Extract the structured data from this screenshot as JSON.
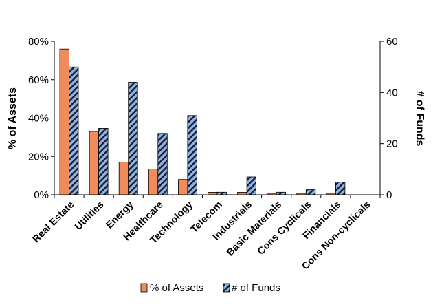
{
  "chart_data": {
    "type": "bar",
    "categories": [
      "Real Estate",
      "Utilities",
      "Energy",
      "Healthcare",
      "Technology",
      "Telecom",
      "Industrials",
      "Basic Materials",
      "Cons Cyclicals",
      "Financials",
      "Cons Non-cyclicals"
    ],
    "series": [
      {
        "name": "% of Assets",
        "axis": "left",
        "values": [
          76,
          33,
          17,
          13.5,
          8,
          1.3,
          1.3,
          0.7,
          0.7,
          0.7,
          0
        ],
        "color": "#f08b5c"
      },
      {
        "name": "# of Funds",
        "axis": "right",
        "values": [
          50,
          26,
          44,
          24,
          31,
          1,
          7,
          1,
          2,
          5,
          0
        ],
        "color": "#8db3e2",
        "pattern": "diagonal-hatch"
      }
    ],
    "ylabel": "% of Assets",
    "y2label": "# of Funds",
    "ylim": [
      0,
      80
    ],
    "y2lim": [
      0,
      60
    ],
    "yticks": [
      "0%",
      "20%",
      "40%",
      "60%",
      "80%"
    ],
    "y2ticks": [
      "0",
      "20",
      "40",
      "60"
    ],
    "grid": false,
    "legend": "bottom"
  }
}
